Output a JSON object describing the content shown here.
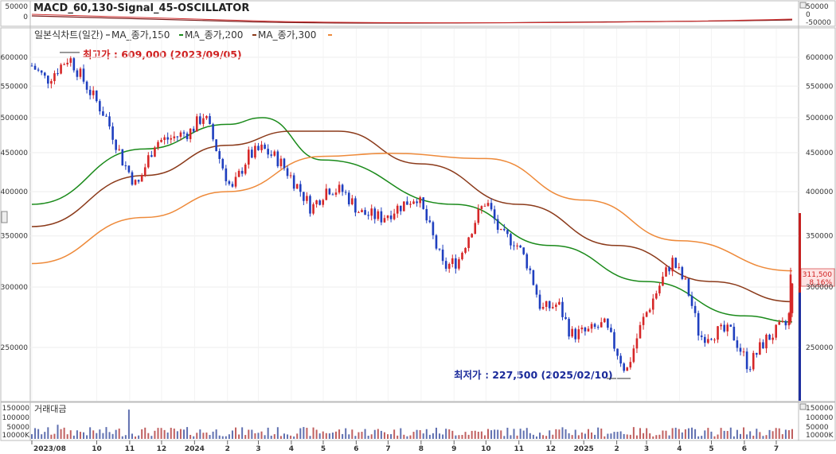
{
  "macd_panel": {
    "label": "MACD_60,130-Signal_45-OSCILLATOR",
    "ticks_left": [
      "50000",
      "0"
    ],
    "ticks_right": [
      "50000",
      "0",
      "-50000"
    ]
  },
  "price_panel": {
    "legend_prefix": "일본식차트(일간)",
    "legend_items": [
      "MA_종가,150",
      "MA_종가,200",
      "MA_종가,300"
    ],
    "high_annotation": "최고가 : 609,000 (2023/09/05)",
    "low_annotation": "최저가 : 227,500 (2025/02/10)",
    "current_price": "311,500",
    "current_change": "8.16%"
  },
  "volume_panel": {
    "label": "거래대금",
    "ticks_left": [
      "150000",
      "100000",
      "50000",
      "10000K"
    ],
    "ticks_right": [
      "150000",
      "100000",
      "50000",
      "10000K"
    ]
  },
  "colors": {
    "up": "#d62728",
    "down": "#1f3fbf",
    "ma150": "#1a8a1a",
    "ma200": "#8b3a1a",
    "ma300": "#ee8a3a",
    "high_text": "#d02020",
    "low_text": "#1a2a9a"
  },
  "chart_data": {
    "type": "candlestick",
    "title": "",
    "y_axis_ticks": [
      "600000",
      "550000",
      "500000",
      "450000",
      "400000",
      "350000",
      "300000",
      "250000"
    ],
    "y_axis_scale": "log",
    "x_tick_labels": [
      "2023/08",
      "10",
      "11",
      "12",
      "2024",
      "2",
      "3",
      "4",
      "5",
      "6",
      "7",
      "8",
      "9",
      "10",
      "11",
      "12",
      "2025",
      "2",
      "3",
      "4",
      "5",
      "6",
      "7"
    ],
    "close_path": [
      [
        "2023-08-01",
        585000
      ],
      [
        "2023-08-15",
        560000
      ],
      [
        "2023-09-05",
        600000
      ],
      [
        "2023-09-25",
        540000
      ],
      [
        "2023-10-10",
        500000
      ],
      [
        "2023-10-25",
        440000
      ],
      [
        "2023-11-08",
        405000
      ],
      [
        "2023-11-25",
        465000
      ],
      [
        "2023-12-10",
        470000
      ],
      [
        "2023-12-28",
        480000
      ],
      [
        "2024-01-10",
        505000
      ],
      [
        "2024-01-25",
        440000
      ],
      [
        "2024-02-05",
        400000
      ],
      [
        "2024-02-20",
        445000
      ],
      [
        "2024-03-05",
        455000
      ],
      [
        "2024-03-20",
        440000
      ],
      [
        "2024-04-05",
        410000
      ],
      [
        "2024-04-20",
        380000
      ],
      [
        "2024-05-05",
        405000
      ],
      [
        "2024-05-20",
        400000
      ],
      [
        "2024-06-05",
        375000
      ],
      [
        "2024-06-25",
        370000
      ],
      [
        "2024-07-15",
        385000
      ],
      [
        "2024-07-28",
        395000
      ],
      [
        "2024-08-10",
        355000
      ],
      [
        "2024-08-22",
        318000
      ],
      [
        "2024-09-05",
        325000
      ],
      [
        "2024-09-20",
        365000
      ],
      [
        "2024-10-01",
        390000
      ],
      [
        "2024-10-15",
        350000
      ],
      [
        "2024-10-28",
        345000
      ],
      [
        "2024-11-10",
        320000
      ],
      [
        "2024-11-22",
        280000
      ],
      [
        "2024-12-08",
        285000
      ],
      [
        "2024-12-20",
        260000
      ],
      [
        "2025-01-05",
        262000
      ],
      [
        "2025-01-20",
        268000
      ],
      [
        "2025-02-10",
        232000
      ],
      [
        "2025-02-25",
        270000
      ],
      [
        "2025-03-10",
        295000
      ],
      [
        "2025-03-25",
        325000
      ],
      [
        "2025-04-08",
        300000
      ],
      [
        "2025-04-20",
        258000
      ],
      [
        "2025-05-05",
        262000
      ],
      [
        "2025-05-20",
        262000
      ],
      [
        "2025-06-05",
        236000
      ],
      [
        "2025-06-20",
        255000
      ],
      [
        "2025-07-05",
        265000
      ],
      [
        "2025-07-12",
        268000
      ],
      [
        "2025-07-16",
        300000
      ]
    ],
    "series": [
      {
        "name": "MA_종가,150",
        "points": [
          [
            "2023-08-01",
            385000
          ],
          [
            "2023-11-15",
            455000
          ],
          [
            "2024-02-01",
            490000
          ],
          [
            "2024-03-05",
            500000
          ],
          [
            "2024-05-01",
            440000
          ],
          [
            "2024-09-01",
            385000
          ],
          [
            "2024-12-01",
            340000
          ],
          [
            "2025-03-01",
            305000
          ],
          [
            "2025-06-01",
            275000
          ],
          [
            "2025-07-16",
            270000
          ]
        ]
      },
      {
        "name": "MA_종가,200",
        "points": [
          [
            "2023-08-01",
            360000
          ],
          [
            "2023-11-15",
            420000
          ],
          [
            "2024-02-01",
            460000
          ],
          [
            "2024-04-01",
            480000
          ],
          [
            "2024-05-15",
            480000
          ],
          [
            "2024-08-01",
            435000
          ],
          [
            "2024-11-01",
            385000
          ],
          [
            "2025-02-01",
            340000
          ],
          [
            "2025-05-01",
            305000
          ],
          [
            "2025-07-16",
            287000
          ]
        ]
      },
      {
        "name": "MA_종가,300",
        "points": [
          [
            "2023-08-01",
            322000
          ],
          [
            "2023-11-15",
            370000
          ],
          [
            "2024-02-01",
            400000
          ],
          [
            "2024-05-01",
            445000
          ],
          [
            "2024-07-01",
            449000
          ],
          [
            "2024-10-01",
            442000
          ],
          [
            "2025-01-01",
            390000
          ],
          [
            "2025-04-01",
            345000
          ],
          [
            "2025-07-16",
            315000
          ]
        ]
      }
    ],
    "ohlc_last": {
      "close": 311500,
      "change_pct": 8.16
    }
  }
}
